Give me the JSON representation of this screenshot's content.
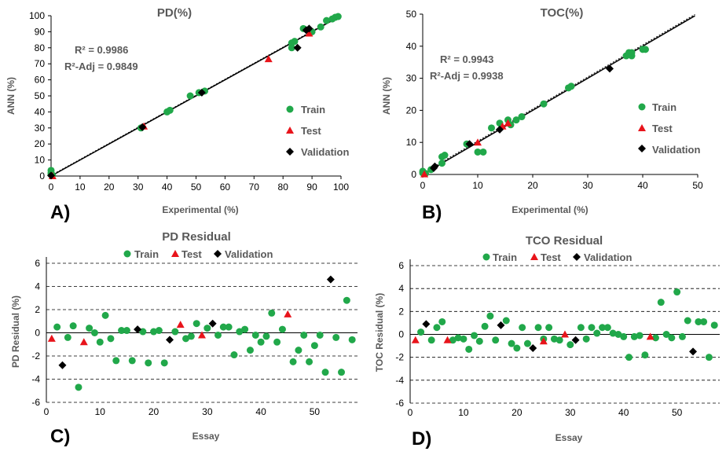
{
  "colors": {
    "train": "#21a84a",
    "test": "#e8141b",
    "validation": "#000000"
  },
  "legend": {
    "train": "Train",
    "test": "Test",
    "validation": "Validation"
  },
  "panels": {
    "a": "A)",
    "b": "B)",
    "c": "C)",
    "d": "D)"
  },
  "chart_data": [
    {
      "type": "scatter",
      "title": "PD(%)",
      "xlabel": "Experimental (%)",
      "ylabel": "ANN (%)",
      "xlim": [
        0,
        100
      ],
      "ylim": [
        0,
        100
      ],
      "xticks": [
        "0",
        "10",
        "20",
        "30",
        "40",
        "50",
        "60",
        "70",
        "80",
        "90",
        "100"
      ],
      "yticks": [
        "0",
        "10",
        "20",
        "30",
        "40",
        "50",
        "60",
        "70",
        "80",
        "90",
        "100"
      ],
      "r2": "R² = 0.9986",
      "r2adj": "R²-Adj = 0.9849",
      "series": [
        {
          "name": "Train",
          "marker": "circle",
          "points": [
            [
              0,
              2
            ],
            [
              0,
              3.5
            ],
            [
              0,
              1
            ],
            [
              0.5,
              0.5
            ],
            [
              31,
              30
            ],
            [
              40,
              40
            ],
            [
              41,
              41
            ],
            [
              48,
              50
            ],
            [
              51,
              52
            ],
            [
              53,
              53
            ],
            [
              83,
              80
            ],
            [
              83,
              83
            ],
            [
              84,
              84
            ],
            [
              87,
              92
            ],
            [
              90,
              90
            ],
            [
              93,
              93
            ],
            [
              95,
              97
            ],
            [
              97,
              98
            ],
            [
              98,
              99
            ],
            [
              99,
              99.5
            ]
          ]
        },
        {
          "name": "Test",
          "marker": "triangle",
          "points": [
            [
              0.5,
              0
            ],
            [
              32,
              31
            ],
            [
              75,
              73
            ],
            [
              89,
              89
            ]
          ]
        },
        {
          "name": "Validation",
          "marker": "diamond",
          "points": [
            [
              0,
              0.3
            ],
            [
              31.5,
              30.5
            ],
            [
              52,
              52
            ],
            [
              85,
              80
            ],
            [
              88,
              91
            ],
            [
              89,
              92
            ]
          ]
        }
      ]
    },
    {
      "type": "scatter",
      "title": "TOC(%)",
      "xlabel": "Experimental (%)",
      "ylabel": "ANN (%)",
      "xlim": [
        0,
        50
      ],
      "ylim": [
        0,
        50
      ],
      "xticks": [
        "0",
        "10",
        "20",
        "30",
        "40",
        "50"
      ],
      "yticks": [
        "0",
        "10",
        "20",
        "30",
        "40",
        "50"
      ],
      "r2": "R² = 0.9943",
      "r2adj": "R²-Adj = 0.9938",
      "series": [
        {
          "name": "Train",
          "marker": "circle",
          "points": [
            [
              0,
              0.5
            ],
            [
              0,
              1
            ],
            [
              1.5,
              1.5
            ],
            [
              3.5,
              3.5
            ],
            [
              3.5,
              5.5
            ],
            [
              4,
              6
            ],
            [
              8,
              9.5
            ],
            [
              10,
              7
            ],
            [
              11,
              7
            ],
            [
              12.5,
              14.5
            ],
            [
              14,
              16
            ],
            [
              15.5,
              17
            ],
            [
              16,
              15.5
            ],
            [
              17,
              17
            ],
            [
              18,
              18
            ],
            [
              22,
              22
            ],
            [
              27,
              27.5
            ],
            [
              26.5,
              27
            ],
            [
              37,
              37
            ],
            [
              37.5,
              38
            ],
            [
              38,
              37
            ],
            [
              38,
              38
            ],
            [
              40,
              39
            ],
            [
              40.5,
              39
            ],
            [
              0.5,
              0.3
            ]
          ]
        },
        {
          "name": "Test",
          "marker": "triangle",
          "points": [
            [
              0.3,
              0.1
            ],
            [
              10,
              10
            ],
            [
              15.5,
              16
            ],
            [
              14.5,
              15
            ]
          ]
        },
        {
          "name": "Validation",
          "marker": "diamond",
          "points": [
            [
              2,
              2
            ],
            [
              2.2,
              2.5
            ],
            [
              8.5,
              9.5
            ],
            [
              14,
              14
            ],
            [
              34,
              33
            ]
          ]
        }
      ]
    },
    {
      "type": "scatter",
      "title": "PD Residual",
      "xlabel": "Essay",
      "ylabel": "PD Residual (%)",
      "xlim": [
        0,
        58
      ],
      "ylim": [
        -6,
        6
      ],
      "xticks": [
        "0",
        "10",
        "20",
        "30",
        "40",
        "50"
      ],
      "yticks": [
        "-6",
        "-4",
        "-2",
        "0",
        "2",
        "4",
        "6"
      ],
      "series": [
        {
          "name": "Train",
          "marker": "circle",
          "points": [
            [
              2,
              0.5
            ],
            [
              4,
              -0.4
            ],
            [
              5,
              0.6
            ],
            [
              6,
              -4.7
            ],
            [
              8,
              0.4
            ],
            [
              9,
              0
            ],
            [
              10,
              -0.8
            ],
            [
              11,
              1.5
            ],
            [
              12,
              -0.5
            ],
            [
              13,
              -2.4
            ],
            [
              14,
              0.2
            ],
            [
              15,
              0.2
            ],
            [
              16,
              -2.4
            ],
            [
              18,
              0.1
            ],
            [
              19,
              -2.6
            ],
            [
              20,
              0.1
            ],
            [
              21,
              0.2
            ],
            [
              22,
              -2.6
            ],
            [
              24,
              0.1
            ],
            [
              26,
              -0.5
            ],
            [
              27,
              -0.3
            ],
            [
              28,
              0.8
            ],
            [
              30,
              0.4
            ],
            [
              32,
              -0.2
            ],
            [
              33,
              0.5
            ],
            [
              34,
              0.5
            ],
            [
              35,
              -1.9
            ],
            [
              36,
              0.1
            ],
            [
              37,
              0.3
            ],
            [
              38,
              -1.5
            ],
            [
              39,
              -0.2
            ],
            [
              40,
              -0.8
            ],
            [
              41,
              -0.3
            ],
            [
              42,
              1.7
            ],
            [
              43,
              -0.8
            ],
            [
              44,
              0.3
            ],
            [
              46,
              -2.5
            ],
            [
              47,
              -1.5
            ],
            [
              48,
              -0.2
            ],
            [
              49,
              -2.5
            ],
            [
              50,
              -1.1
            ],
            [
              51,
              -0.2
            ],
            [
              52,
              -3.4
            ],
            [
              54,
              -0.4
            ],
            [
              55,
              -3.4
            ],
            [
              56,
              2.8
            ],
            [
              57,
              -0.6
            ]
          ]
        },
        {
          "name": "Test",
          "marker": "triangle",
          "points": [
            [
              1,
              -0.5
            ],
            [
              7,
              -0.8
            ],
            [
              25,
              0.7
            ],
            [
              29,
              -0.2
            ],
            [
              45,
              1.6
            ]
          ]
        },
        {
          "name": "Validation",
          "marker": "diamond",
          "points": [
            [
              3,
              -2.8
            ],
            [
              17,
              0.3
            ],
            [
              23,
              -0.6
            ],
            [
              31,
              0.8
            ],
            [
              53,
              4.6
            ]
          ]
        }
      ]
    },
    {
      "type": "scatter",
      "title": "TCO Residual",
      "xlabel": "Essay",
      "ylabel": "TOC Residual (%)",
      "xlim": [
        0,
        58
      ],
      "ylim": [
        -6,
        6
      ],
      "xticks": [
        "0",
        "10",
        "20",
        "30",
        "40",
        "50"
      ],
      "yticks": [
        "-6",
        "-4",
        "-2",
        "0",
        "2",
        "4",
        "6"
      ],
      "series": [
        {
          "name": "Train",
          "marker": "circle",
          "points": [
            [
              2,
              0.2
            ],
            [
              4,
              -0.5
            ],
            [
              5,
              0.6
            ],
            [
              6,
              1.1
            ],
            [
              8,
              -0.5
            ],
            [
              9,
              -0.3
            ],
            [
              10,
              -0.4
            ],
            [
              11,
              -1.3
            ],
            [
              12,
              -0.1
            ],
            [
              13,
              -0.6
            ],
            [
              14,
              0.7
            ],
            [
              15,
              1.6
            ],
            [
              16,
              -0.5
            ],
            [
              18,
              1.2
            ],
            [
              19,
              -0.8
            ],
            [
              20,
              -1.2
            ],
            [
              21,
              0.6
            ],
            [
              22,
              -0.8
            ],
            [
              24,
              0.6
            ],
            [
              25,
              -0.4
            ],
            [
              26,
              0.6
            ],
            [
              27,
              -0.4
            ],
            [
              28,
              -0.5
            ],
            [
              30,
              -0.9
            ],
            [
              32,
              0.6
            ],
            [
              33,
              -0.4
            ],
            [
              34,
              0.6
            ],
            [
              35,
              0.1
            ],
            [
              36,
              0.6
            ],
            [
              37,
              0.6
            ],
            [
              38,
              0.1
            ],
            [
              39,
              0
            ],
            [
              40,
              -0.2
            ],
            [
              41,
              -2
            ],
            [
              42,
              -0.2
            ],
            [
              43,
              -0.1
            ],
            [
              44,
              -1.8
            ],
            [
              46,
              -0.3
            ],
            [
              47,
              2.8
            ],
            [
              48,
              0
            ],
            [
              49,
              -0.3
            ],
            [
              50,
              3.7
            ],
            [
              51,
              -0.2
            ],
            [
              52,
              1.2
            ],
            [
              54,
              1.1
            ],
            [
              55,
              1.1
            ],
            [
              56,
              -2
            ],
            [
              57,
              0.8
            ]
          ]
        },
        {
          "name": "Test",
          "marker": "triangle",
          "points": [
            [
              1,
              -0.5
            ],
            [
              7,
              -0.5
            ],
            [
              29,
              0
            ],
            [
              45,
              -0.2
            ],
            [
              25,
              -0.6
            ]
          ]
        },
        {
          "name": "Validation",
          "marker": "diamond",
          "points": [
            [
              3,
              0.9
            ],
            [
              17,
              0.8
            ],
            [
              23,
              -1.2
            ],
            [
              31,
              -0.5
            ],
            [
              53,
              -1.5
            ]
          ]
        }
      ]
    }
  ]
}
